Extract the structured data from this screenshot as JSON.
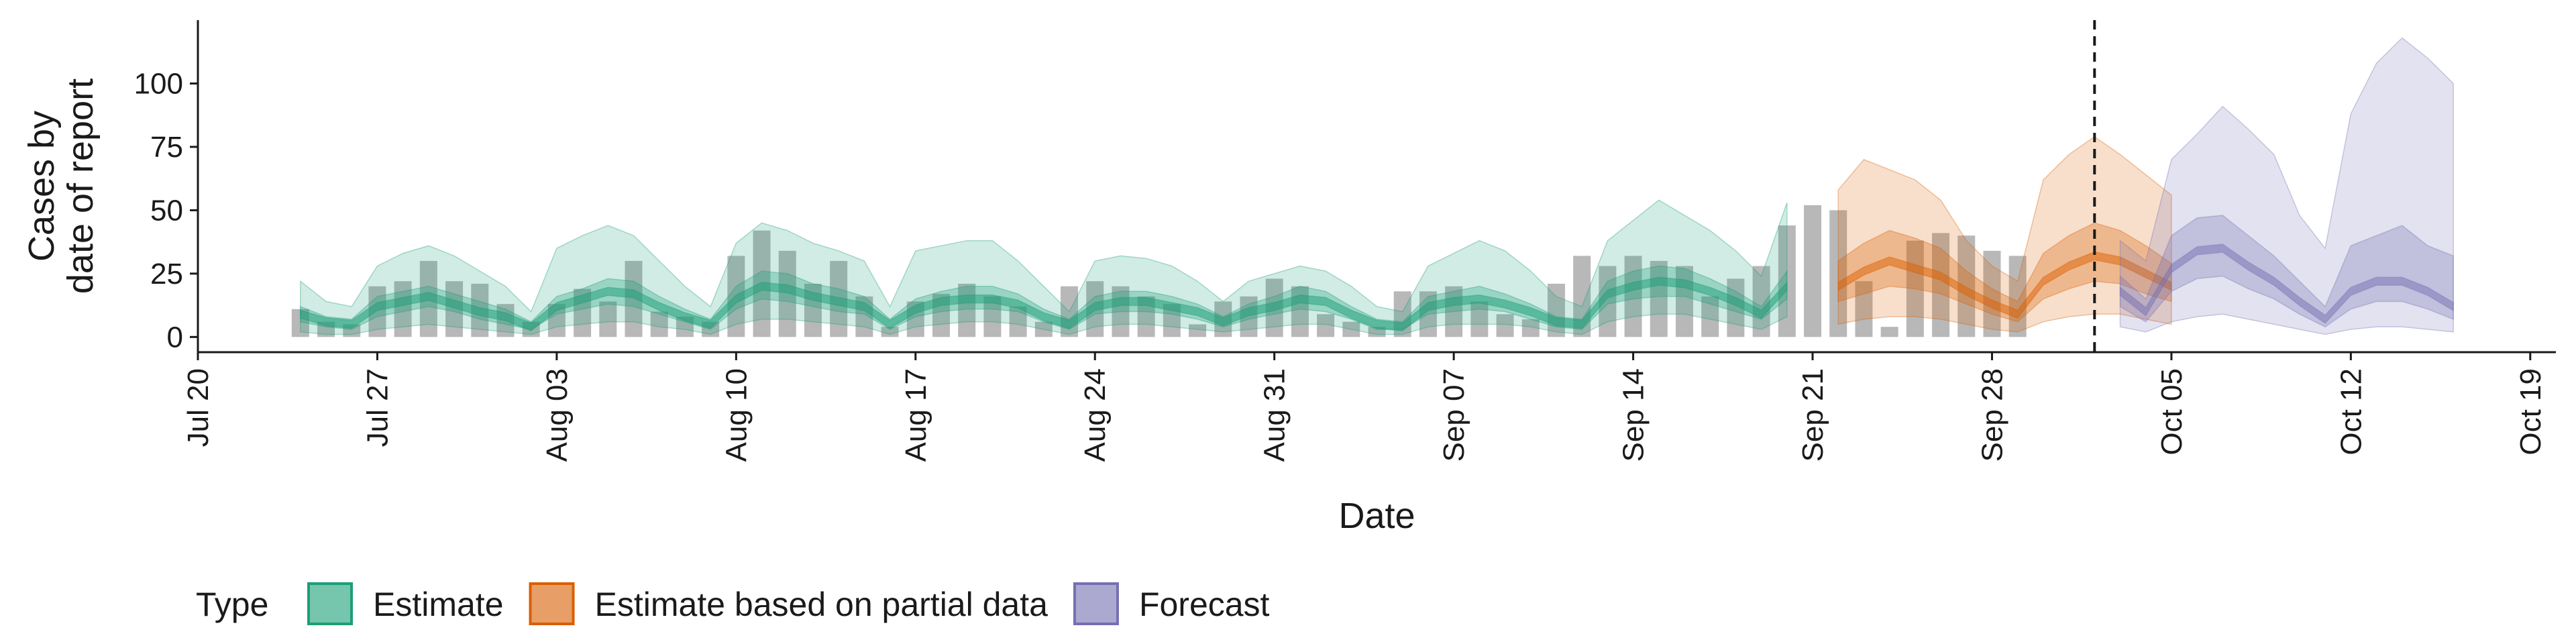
{
  "chart_data": {
    "type": "area",
    "xlabel": "Date",
    "ylabel": [
      "Cases by",
      "date of report"
    ],
    "ylim": [
      -6,
      125
    ],
    "x_range": [
      "2020-07-20",
      "2020-10-20"
    ],
    "x_ticks": [
      {
        "date": "2020-07-20",
        "label": "Jul 20"
      },
      {
        "date": "2020-07-27",
        "label": "Jul 27"
      },
      {
        "date": "2020-08-03",
        "label": "Aug 03"
      },
      {
        "date": "2020-08-10",
        "label": "Aug 10"
      },
      {
        "date": "2020-08-17",
        "label": "Aug 17"
      },
      {
        "date": "2020-08-24",
        "label": "Aug 24"
      },
      {
        "date": "2020-08-31",
        "label": "Aug 31"
      },
      {
        "date": "2020-09-07",
        "label": "Sep 07"
      },
      {
        "date": "2020-09-14",
        "label": "Sep 14"
      },
      {
        "date": "2020-09-21",
        "label": "Sep 21"
      },
      {
        "date": "2020-09-28",
        "label": "Sep 28"
      },
      {
        "date": "2020-10-05",
        "label": "Oct 05"
      },
      {
        "date": "2020-10-12",
        "label": "Oct 12"
      },
      {
        "date": "2020-10-19",
        "label": "Oct 19"
      }
    ],
    "y_ticks": [
      0,
      25,
      50,
      75,
      100
    ],
    "vline_date": "2020-10-02",
    "legend": {
      "title": "Type",
      "position": "bottom-left"
    },
    "colors": {
      "Estimate": "#1b9e77",
      "Estimate based on partial data": "#d95f02",
      "Forecast": "#7570b3",
      "bars": "#a6a6a6"
    },
    "reported_cases": {
      "start": "2020-07-24",
      "values": [
        11,
        6,
        5,
        20,
        22,
        30,
        22,
        21,
        13,
        6,
        13,
        19,
        14,
        30,
        10,
        8,
        6,
        32,
        42,
        34,
        21,
        30,
        16,
        4,
        14,
        17,
        21,
        16,
        12,
        6,
        20,
        22,
        20,
        16,
        13,
        5,
        14,
        16,
        23,
        20,
        9,
        6,
        4,
        18,
        18,
        20,
        14,
        9,
        7,
        21,
        32,
        28,
        32,
        30,
        28,
        16,
        23,
        28,
        44,
        52,
        50,
        22,
        4,
        38,
        41,
        40,
        34,
        32
      ]
    },
    "series": [
      {
        "name": "Estimate",
        "start": "2020-07-24",
        "median": [
          9,
          6,
          5,
          12,
          14,
          16,
          13,
          10,
          8,
          4,
          12,
          15,
          18,
          17,
          12,
          8,
          5,
          15,
          20,
          19,
          16,
          14,
          12,
          5,
          11,
          14,
          15,
          15,
          13,
          8,
          5,
          12,
          14,
          14,
          12,
          10,
          6,
          10,
          12,
          15,
          14,
          9,
          5,
          4,
          12,
          14,
          15,
          13,
          10,
          6,
          5,
          17,
          20,
          22,
          21,
          18,
          14,
          9,
          20
        ],
        "ci50": [
          [
            6,
            12
          ],
          [
            4,
            8
          ],
          [
            3,
            7
          ],
          [
            8,
            16
          ],
          [
            10,
            18
          ],
          [
            12,
            20
          ],
          [
            10,
            17
          ],
          [
            7,
            14
          ],
          [
            5,
            11
          ],
          [
            3,
            6
          ],
          [
            9,
            16
          ],
          [
            11,
            19
          ],
          [
            13,
            23
          ],
          [
            12,
            22
          ],
          [
            9,
            16
          ],
          [
            6,
            11
          ],
          [
            3,
            7
          ],
          [
            11,
            20
          ],
          [
            15,
            26
          ],
          [
            14,
            25
          ],
          [
            12,
            21
          ],
          [
            10,
            19
          ],
          [
            9,
            16
          ],
          [
            3,
            7
          ],
          [
            8,
            15
          ],
          [
            10,
            18
          ],
          [
            11,
            20
          ],
          [
            11,
            20
          ],
          [
            10,
            17
          ],
          [
            6,
            11
          ],
          [
            3,
            7
          ],
          [
            9,
            16
          ],
          [
            10,
            18
          ],
          [
            10,
            18
          ],
          [
            9,
            16
          ],
          [
            7,
            13
          ],
          [
            4,
            8
          ],
          [
            7,
            13
          ],
          [
            9,
            16
          ],
          [
            11,
            20
          ],
          [
            10,
            18
          ],
          [
            7,
            12
          ],
          [
            3,
            7
          ],
          [
            3,
            6
          ],
          [
            9,
            16
          ],
          [
            10,
            18
          ],
          [
            11,
            20
          ],
          [
            10,
            17
          ],
          [
            7,
            13
          ],
          [
            4,
            8
          ],
          [
            3,
            7
          ],
          [
            13,
            22
          ],
          [
            15,
            26
          ],
          [
            16,
            28
          ],
          [
            16,
            27
          ],
          [
            13,
            23
          ],
          [
            10,
            18
          ],
          [
            7,
            12
          ],
          [
            15,
            26
          ]
        ],
        "ci90": [
          [
            2,
            22
          ],
          [
            1,
            14
          ],
          [
            1,
            12
          ],
          [
            3,
            28
          ],
          [
            4,
            33
          ],
          [
            5,
            36
          ],
          [
            4,
            32
          ],
          [
            3,
            26
          ],
          [
            2,
            20
          ],
          [
            1,
            10
          ],
          [
            4,
            35
          ],
          [
            5,
            40
          ],
          [
            6,
            44
          ],
          [
            6,
            40
          ],
          [
            4,
            30
          ],
          [
            3,
            20
          ],
          [
            1,
            12
          ],
          [
            5,
            37
          ],
          [
            7,
            45
          ],
          [
            7,
            42
          ],
          [
            6,
            37
          ],
          [
            5,
            34
          ],
          [
            4,
            30
          ],
          [
            1,
            12
          ],
          [
            4,
            34
          ],
          [
            5,
            36
          ],
          [
            6,
            38
          ],
          [
            6,
            38
          ],
          [
            5,
            30
          ],
          [
            3,
            20
          ],
          [
            1,
            10
          ],
          [
            4,
            30
          ],
          [
            5,
            32
          ],
          [
            5,
            31
          ],
          [
            4,
            28
          ],
          [
            3,
            22
          ],
          [
            2,
            14
          ],
          [
            3,
            22
          ],
          [
            4,
            25
          ],
          [
            5,
            28
          ],
          [
            5,
            26
          ],
          [
            3,
            20
          ],
          [
            1,
            12
          ],
          [
            1,
            10
          ],
          [
            4,
            28
          ],
          [
            5,
            33
          ],
          [
            5,
            38
          ],
          [
            5,
            34
          ],
          [
            4,
            26
          ],
          [
            2,
            16
          ],
          [
            1,
            12
          ],
          [
            6,
            38
          ],
          [
            8,
            46
          ],
          [
            9,
            54
          ],
          [
            9,
            48
          ],
          [
            7,
            42
          ],
          [
            5,
            34
          ],
          [
            3,
            24
          ],
          [
            8,
            53
          ]
        ]
      },
      {
        "name": "Estimate based on partial data",
        "start": "2020-09-22",
        "median": [
          20,
          26,
          30,
          27,
          24,
          18,
          13,
          9,
          22,
          28,
          32,
          30,
          25,
          20
        ],
        "ci50": [
          [
            14,
            30
          ],
          [
            17,
            37
          ],
          [
            20,
            42
          ],
          [
            19,
            39
          ],
          [
            17,
            35
          ],
          [
            13,
            26
          ],
          [
            9,
            19
          ],
          [
            6,
            14
          ],
          [
            15,
            33
          ],
          [
            19,
            40
          ],
          [
            22,
            45
          ],
          [
            21,
            42
          ],
          [
            17,
            36
          ],
          [
            14,
            29
          ]
        ],
        "ci90": [
          [
            5,
            58
          ],
          [
            7,
            70
          ],
          [
            8,
            66
          ],
          [
            8,
            62
          ],
          [
            7,
            54
          ],
          [
            5,
            38
          ],
          [
            3,
            28
          ],
          [
            2,
            22
          ],
          [
            6,
            62
          ],
          [
            8,
            72
          ],
          [
            9,
            79
          ],
          [
            9,
            72
          ],
          [
            7,
            64
          ],
          [
            5,
            56
          ]
        ]
      },
      {
        "name": "Forecast",
        "start": "2020-10-03",
        "median": [
          18,
          10,
          27,
          34,
          35,
          28,
          22,
          14,
          7,
          18,
          22,
          22,
          18,
          12
        ],
        "ci50": [
          [
            12,
            24
          ],
          [
            6,
            15
          ],
          [
            18,
            40
          ],
          [
            23,
            47
          ],
          [
            24,
            48
          ],
          [
            19,
            40
          ],
          [
            15,
            32
          ],
          [
            9,
            22
          ],
          [
            4,
            12
          ],
          [
            11,
            36
          ],
          [
            14,
            40
          ],
          [
            14,
            44
          ],
          [
            11,
            36
          ],
          [
            7,
            32
          ]
        ],
        "ci90": [
          [
            4,
            38
          ],
          [
            2,
            30
          ],
          [
            6,
            70
          ],
          [
            8,
            80
          ],
          [
            9,
            91
          ],
          [
            7,
            82
          ],
          [
            5,
            72
          ],
          [
            3,
            48
          ],
          [
            1,
            35
          ],
          [
            3,
            88
          ],
          [
            4,
            108
          ],
          [
            4,
            118
          ],
          [
            3,
            110
          ],
          [
            2,
            100
          ]
        ]
      }
    ]
  }
}
